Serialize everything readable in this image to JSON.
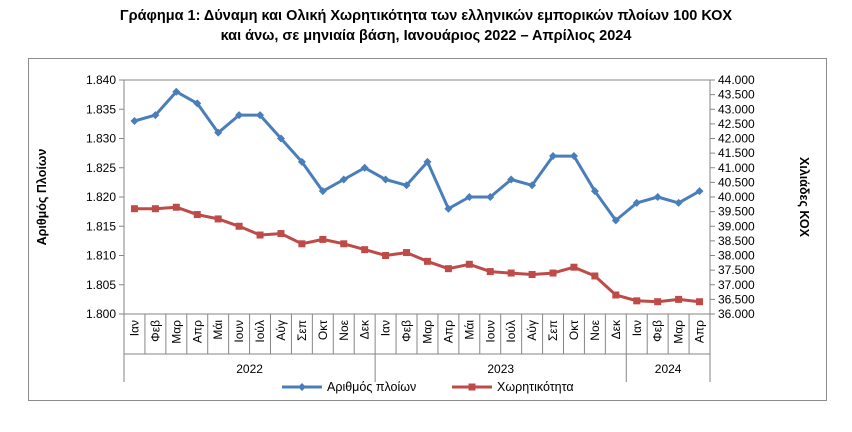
{
  "title_line1": "Γράφημα 1: Δύναμη και Ολική Χωρητικότητα των ελληνικών εμπορικών πλοίων 100 ΚΟΧ",
  "title_line2": "και άνω, σε μηνιαία βάση, Ιανουάριος 2022 – Απρίλιος 2024",
  "chart_data": {
    "type": "line",
    "title": "Γράφημα 1: Δύναμη και Ολική Χωρητικότητα των ελληνικών εμπορικών πλοίων 100 ΚΟΧ και άνω, σε μηνιαία βάση, Ιανουάριος 2022 – Απρίλιος 2024",
    "categories": [
      "Ιαν",
      "Φεβ",
      "Μαρ",
      "Απρ",
      "Μάι",
      "Ιουν",
      "Ιούλ",
      "Αύγ",
      "Σεπ",
      "Οκτ",
      "Νοε",
      "Δεκ",
      "Ιαν",
      "Φεβ",
      "Μαρ",
      "Απρ",
      "Μάι",
      "Ιουν",
      "Ιούλ",
      "Αύγ",
      "Σεπ",
      "Οκτ",
      "Νοε",
      "Δεκ",
      "Ιαν",
      "Φεβ",
      "Μαρ",
      "Απρ"
    ],
    "years": [
      {
        "label": "2022",
        "count": 12
      },
      {
        "label": "2023",
        "count": 12
      },
      {
        "label": "2024",
        "count": 4
      }
    ],
    "ylabel": "Αριθμός Πλοίων",
    "y2label": "Χιλιάδες ΚΟΧ",
    "ylim": [
      1.8,
      1.84
    ],
    "y_ticks": [
      "1.800",
      "1.805",
      "1.810",
      "1.815",
      "1.820",
      "1.825",
      "1.830",
      "1.835",
      "1.840"
    ],
    "y2lim": [
      36.0,
      44.0
    ],
    "y2_ticks": [
      "36.000",
      "36.500",
      "37.000",
      "37.500",
      "38.000",
      "38.500",
      "39.000",
      "39.500",
      "40.000",
      "40.500",
      "41.000",
      "41.500",
      "42.000",
      "42.500",
      "43.000",
      "43.500",
      "44.000"
    ],
    "legend_position": "bottom",
    "series": [
      {
        "name": "Αριθμός πλοίων",
        "axis": "left",
        "color": "#4a7ebb",
        "marker": "diamond",
        "values": [
          1.833,
          1.834,
          1.838,
          1.836,
          1.831,
          1.834,
          1.834,
          1.83,
          1.826,
          1.821,
          1.823,
          1.825,
          1.823,
          1.822,
          1.826,
          1.818,
          1.82,
          1.82,
          1.823,
          1.822,
          1.827,
          1.827,
          1.821,
          1.816,
          1.819,
          1.82,
          1.819,
          1.821
        ]
      },
      {
        "name": "Χωρητικότητα",
        "axis": "right",
        "color": "#be4b48",
        "marker": "square",
        "values": [
          39.6,
          39.6,
          39.65,
          39.4,
          39.25,
          39.0,
          38.7,
          38.75,
          38.4,
          38.55,
          38.4,
          38.2,
          38.0,
          38.1,
          37.8,
          37.55,
          37.7,
          37.45,
          37.4,
          37.35,
          37.4,
          37.6,
          37.3,
          36.65,
          36.45,
          36.42,
          36.5,
          36.42
        ]
      }
    ]
  }
}
